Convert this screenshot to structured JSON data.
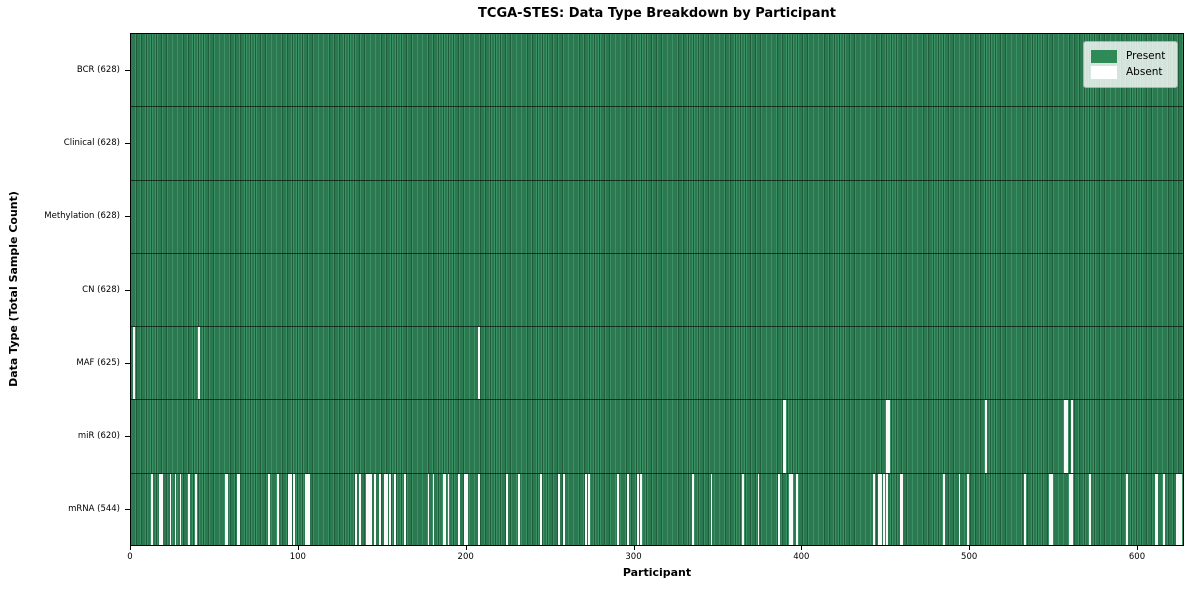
{
  "title": "TCGA-STES: Data Type Breakdown by Participant",
  "chart_data": {
    "type": "heatmap",
    "title": "TCGA-STES: Data Type Breakdown by Participant",
    "xlabel": "Participant",
    "ylabel": "Data Type (Total Sample Count)",
    "xlim": [
      0,
      628
    ],
    "x_ticks": [
      0,
      100,
      200,
      300,
      400,
      500,
      600
    ],
    "n_participants": 628,
    "grid": false,
    "legend": {
      "position": "upper right",
      "entries": [
        {
          "label": "Present",
          "color": "#2e8b57"
        },
        {
          "label": "Absent",
          "color": "#ffffff"
        }
      ]
    },
    "colors": {
      "present": "#2e8b57",
      "present_edge": "#1f5e3b",
      "absent": "#fafafa",
      "row_divider": "#000000"
    },
    "rows": [
      {
        "data_type": "BCR",
        "label": "BCR (628)",
        "present_count": 628,
        "absent_participants": []
      },
      {
        "data_type": "Clinical",
        "label": "Clinical (628)",
        "present_count": 628,
        "absent_participants": []
      },
      {
        "data_type": "Methylation",
        "label": "Methylation (628)",
        "present_count": 628,
        "absent_participants": []
      },
      {
        "data_type": "CN",
        "label": "CN (628)",
        "present_count": 628,
        "absent_participants": []
      },
      {
        "data_type": "MAF",
        "label": "MAF (625)",
        "present_count": 625,
        "absent_participants": [
          1,
          40,
          207
        ]
      },
      {
        "data_type": "miR",
        "label": "miR (620)",
        "present_count": 620,
        "absent_participants": [
          389,
          390,
          451,
          452,
          510,
          557,
          558,
          561
        ]
      },
      {
        "data_type": "mRNA",
        "label": "mRNA (544)",
        "present_count": 544,
        "absent_participants": [
          12,
          17,
          18,
          23,
          26,
          29,
          34,
          38,
          56,
          57,
          63,
          64,
          82,
          87,
          94,
          95,
          97,
          104,
          105,
          106,
          134,
          136,
          140,
          141,
          142,
          143,
          145,
          148,
          151,
          152,
          154,
          157,
          163,
          177,
          180,
          186,
          187,
          189,
          195,
          199,
          200,
          207,
          224,
          231,
          244,
          255,
          258,
          271,
          273,
          290,
          296,
          302,
          304,
          335,
          346,
          365,
          374,
          386,
          393,
          394,
          397,
          443,
          446,
          447,
          449,
          451,
          459,
          460,
          485,
          494,
          499,
          533,
          548,
          549,
          560,
          561,
          572,
          594,
          611,
          612,
          616,
          624,
          625,
          626
        ]
      }
    ]
  }
}
